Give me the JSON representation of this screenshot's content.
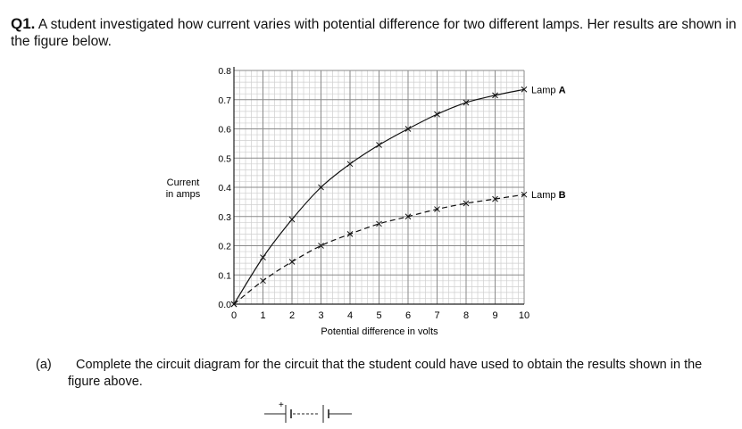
{
  "question": {
    "number": "Q1.",
    "text": "A student investigated how current varies with potential difference for two different lamps. Her results are shown in the figure below."
  },
  "chart_data": {
    "type": "line",
    "xlabel": "Potential difference in volts",
    "ylabel": [
      "Current",
      "in amps"
    ],
    "xlim": [
      0,
      10
    ],
    "ylim": [
      0,
      0.8
    ],
    "x_ticks": [
      "0",
      "1",
      "2",
      "3",
      "4",
      "5",
      "6",
      "7",
      "8",
      "9",
      "10"
    ],
    "y_ticks": [
      "0.0",
      "0.1",
      "0.2",
      "0.3",
      "0.4",
      "0.5",
      "0.6",
      "0.7",
      "0.8"
    ],
    "grid": true,
    "series": [
      {
        "name": "Lamp A",
        "style": "solid",
        "x": [
          0,
          1,
          2,
          3,
          4,
          5,
          6,
          7,
          8,
          9,
          10
        ],
        "y": [
          0,
          0.16,
          0.29,
          0.4,
          0.48,
          0.545,
          0.6,
          0.65,
          0.69,
          0.715,
          0.735
        ]
      },
      {
        "name": "Lamp B",
        "style": "dashed",
        "x": [
          0,
          1,
          2,
          3,
          4,
          5,
          6,
          7,
          8,
          9,
          10
        ],
        "y": [
          0,
          0.08,
          0.145,
          0.2,
          0.24,
          0.275,
          0.3,
          0.325,
          0.345,
          0.36,
          0.375
        ]
      }
    ]
  },
  "part_a": {
    "label": "(a)",
    "text": "Complete the circuit diagram for the circuit that the student could have used to obtain the results shown in the figure above."
  },
  "circuit": {
    "plus_sign": "+"
  }
}
